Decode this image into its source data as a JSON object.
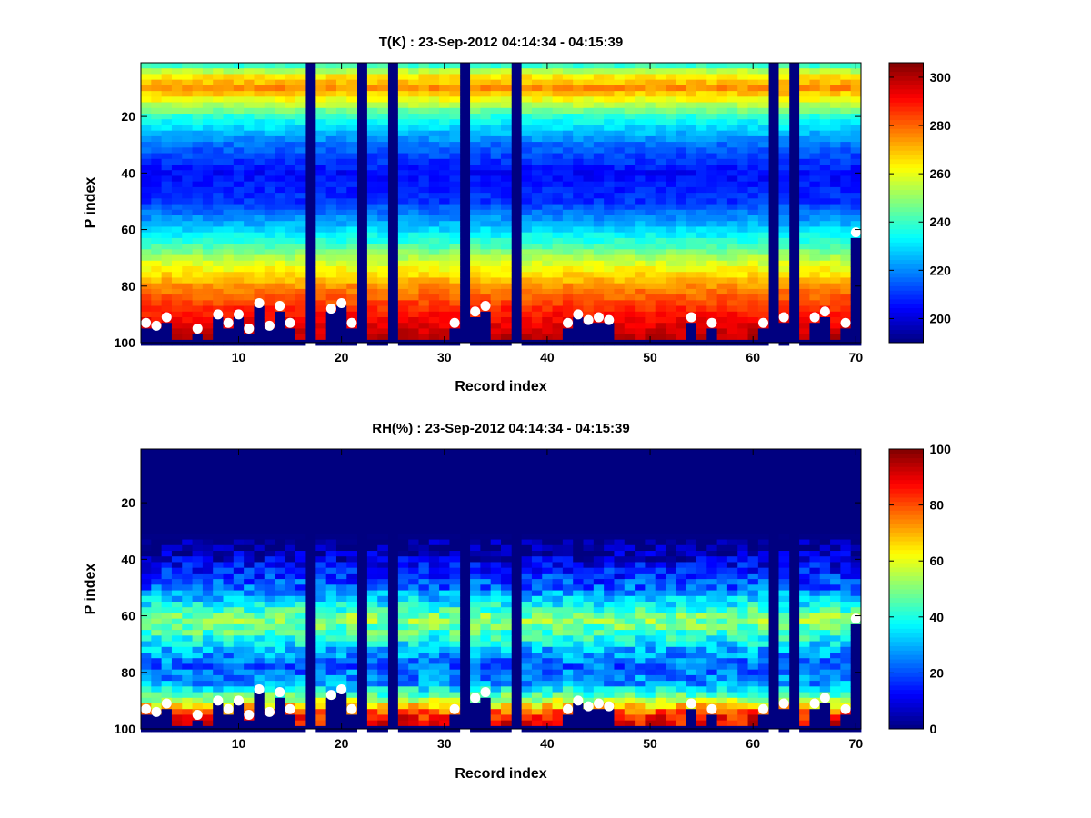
{
  "chart_data": [
    {
      "type": "heatmap",
      "title": "T(K) : 23-Sep-2012 04:14:34 - 04:15:39",
      "xlabel": "Record index",
      "ylabel": "P index",
      "xlim": [
        0.5,
        70.5
      ],
      "ylim": [
        100,
        1
      ],
      "y_reversed": true,
      "xticks": [
        10,
        20,
        30,
        40,
        50,
        60,
        70
      ],
      "yticks": [
        20,
        40,
        60,
        80,
        100
      ],
      "colormap": "jet",
      "clim": [
        190,
        306
      ],
      "colorbar_ticks": [
        200,
        220,
        240,
        260,
        280,
        300
      ],
      "missing_columns": [
        17,
        22,
        25,
        32,
        37,
        62,
        64
      ],
      "profile_by_p_index": [
        {
          "p": 1,
          "value": 232
        },
        {
          "p": 5,
          "value": 262
        },
        {
          "p": 10,
          "value": 275
        },
        {
          "p": 15,
          "value": 258
        },
        {
          "p": 20,
          "value": 238
        },
        {
          "p": 30,
          "value": 217
        },
        {
          "p": 40,
          "value": 205
        },
        {
          "p": 50,
          "value": 210
        },
        {
          "p": 58,
          "value": 225
        },
        {
          "p": 65,
          "value": 240
        },
        {
          "p": 72,
          "value": 258
        },
        {
          "p": 80,
          "value": 275
        },
        {
          "p": 88,
          "value": 287
        },
        {
          "p": 95,
          "value": 296
        },
        {
          "p": 100,
          "value": 300
        }
      ],
      "surface_points": {
        "x": [
          1,
          2,
          3,
          6,
          8,
          9,
          10,
          11,
          12,
          13,
          14,
          15,
          19,
          20,
          21,
          31,
          33,
          34,
          42,
          43,
          44,
          45,
          46,
          54,
          56,
          61,
          63,
          66,
          67,
          69,
          70
        ],
        "y": [
          93,
          94,
          91,
          95,
          90,
          93,
          90,
          95,
          86,
          94,
          87,
          93,
          88,
          86,
          93,
          93,
          89,
          87,
          93,
          90,
          92,
          91,
          92,
          91,
          93,
          93,
          91,
          91,
          89,
          93,
          61
        ]
      }
    },
    {
      "type": "heatmap",
      "title": "RH(%) : 23-Sep-2012 04:14:34 - 04:15:39",
      "xlabel": "Record index",
      "ylabel": "P index",
      "xlim": [
        0.5,
        70.5
      ],
      "ylim": [
        100,
        1
      ],
      "y_reversed": true,
      "xticks": [
        10,
        20,
        30,
        40,
        50,
        60,
        70
      ],
      "yticks": [
        20,
        40,
        60,
        80,
        100
      ],
      "colormap": "jet",
      "clim": [
        0,
        100
      ],
      "colorbar_ticks": [
        0,
        20,
        40,
        60,
        80,
        100
      ],
      "missing_columns": [
        17,
        22,
        25,
        32,
        37,
        62,
        64
      ],
      "profile_by_p_index": [
        {
          "p": 1,
          "value": 0
        },
        {
          "p": 30,
          "value": 0
        },
        {
          "p": 36,
          "value": 2
        },
        {
          "p": 42,
          "value": 12
        },
        {
          "p": 50,
          "value": 22
        },
        {
          "p": 56,
          "value": 38
        },
        {
          "p": 61,
          "value": 52
        },
        {
          "p": 66,
          "value": 45
        },
        {
          "p": 72,
          "value": 30
        },
        {
          "p": 78,
          "value": 22
        },
        {
          "p": 84,
          "value": 28
        },
        {
          "p": 90,
          "value": 55
        },
        {
          "p": 95,
          "value": 85
        },
        {
          "p": 100,
          "value": 90
        }
      ],
      "surface_points": {
        "x": [
          1,
          2,
          3,
          6,
          8,
          9,
          10,
          11,
          12,
          13,
          14,
          15,
          19,
          20,
          21,
          31,
          33,
          34,
          42,
          43,
          44,
          45,
          46,
          54,
          56,
          61,
          63,
          66,
          67,
          69,
          70
        ],
        "y": [
          93,
          94,
          91,
          95,
          90,
          93,
          90,
          95,
          86,
          94,
          87,
          93,
          88,
          86,
          93,
          93,
          89,
          87,
          93,
          90,
          92,
          91,
          92,
          91,
          93,
          93,
          91,
          91,
          89,
          93,
          61
        ]
      }
    }
  ]
}
